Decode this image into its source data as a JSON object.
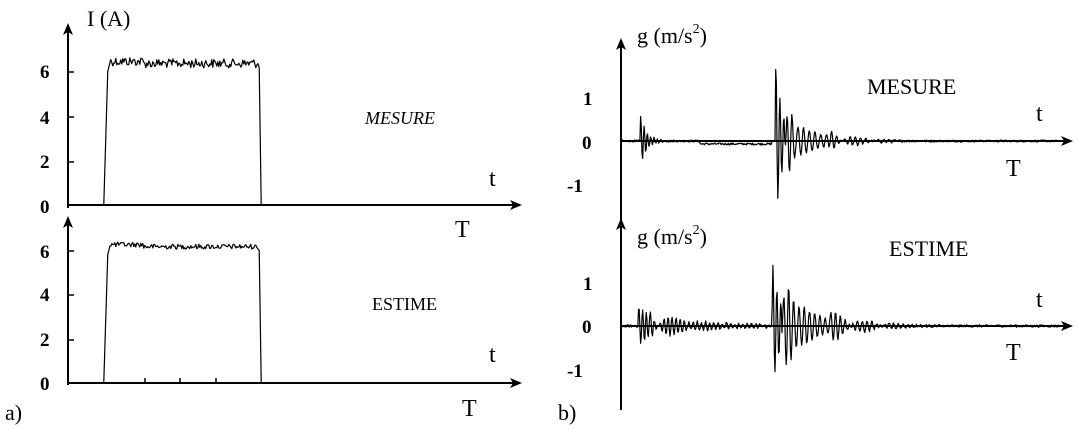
{
  "panel_labels": {
    "a": "a)",
    "b": "b)"
  },
  "chart_data": [
    {
      "type": "line",
      "panel": "a",
      "trace": "MESURE",
      "ylabel": "I (A)",
      "xlabel_lower": "T",
      "xlabel_axis": "t",
      "annotation": "MESURE",
      "yticks": [
        "6",
        "4",
        "2",
        "0"
      ],
      "ylim": [
        0,
        7
      ],
      "pulse": {
        "start": 0.08,
        "end": 0.43,
        "level": 6.35
      }
    },
    {
      "type": "line",
      "panel": "a",
      "trace": "ESTIME",
      "ylabel": "",
      "xlabel_lower": "T",
      "xlabel_axis": "t",
      "annotation": "ESTIME",
      "yticks": [
        "6",
        "4",
        "2",
        "0"
      ],
      "ylim": [
        0,
        6.8
      ],
      "pulse": {
        "start": 0.08,
        "end": 0.43,
        "level": 6.2
      }
    },
    {
      "type": "line",
      "panel": "b",
      "trace": "MESURE",
      "ylabel": "g (m/s",
      "ylabel_sup": "2",
      "ylabel_close": ")",
      "xlabel_lower": "T",
      "xlabel_axis": "t",
      "annotation": "MESURE",
      "yticks": [
        "1",
        "0",
        "-1"
      ],
      "ylim": [
        -1.7,
        1.8
      ]
    },
    {
      "type": "line",
      "panel": "b",
      "trace": "ESTIME",
      "ylabel": "g (m/s",
      "ylabel_sup": "2",
      "ylabel_close": ")",
      "xlabel_lower": "T",
      "xlabel_axis": "t",
      "annotation": "ESTIME",
      "yticks": [
        "1",
        "0",
        "-1"
      ],
      "ylim": [
        -1.6,
        1.7
      ]
    }
  ]
}
